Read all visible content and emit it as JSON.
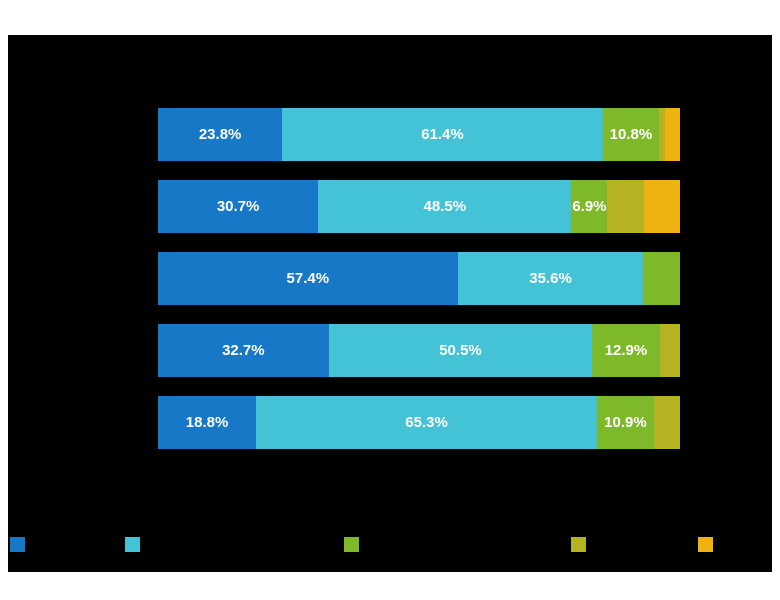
{
  "page": {
    "background_color": "#ffffff",
    "panel_color": "#000000"
  },
  "chart_data": {
    "type": "bar",
    "variant": "horizontal-stacked",
    "background": "#000000",
    "label_color": "#ffffff",
    "xlim": [
      0,
      100
    ],
    "categories": [
      "",
      "",
      "",
      "",
      ""
    ],
    "series_colors": [
      "#1878c8",
      "#45c3d6",
      "#7db928",
      "#b5b321",
      "#eeb211"
    ],
    "bars": [
      {
        "segments": [
          {
            "value": 23.8,
            "label": "23.8%"
          },
          {
            "value": 61.4,
            "label": "61.4%"
          },
          {
            "value": 10.8,
            "label": "10.8%"
          },
          {
            "value": 1.2,
            "label": ""
          },
          {
            "value": 2.8,
            "label": ""
          }
        ]
      },
      {
        "segments": [
          {
            "value": 30.7,
            "label": "30.7%"
          },
          {
            "value": 48.5,
            "label": "48.5%"
          },
          {
            "value": 6.9,
            "label": "6.9%"
          },
          {
            "value": 7.0,
            "label": ""
          },
          {
            "value": 6.9,
            "label": ""
          }
        ]
      },
      {
        "segments": [
          {
            "value": 57.4,
            "label": "57.4%"
          },
          {
            "value": 35.6,
            "label": "35.6%"
          },
          {
            "value": 7.0,
            "label": ""
          },
          {
            "value": 0,
            "label": ""
          },
          {
            "value": 0,
            "label": ""
          }
        ]
      },
      {
        "segments": [
          {
            "value": 32.7,
            "label": "32.7%"
          },
          {
            "value": 50.5,
            "label": "50.5%"
          },
          {
            "value": 12.9,
            "label": "12.9%"
          },
          {
            "value": 3.9,
            "label": ""
          },
          {
            "value": 0,
            "label": ""
          }
        ]
      },
      {
        "segments": [
          {
            "value": 18.8,
            "label": "18.8%"
          },
          {
            "value": 65.3,
            "label": "65.3%"
          },
          {
            "value": 10.9,
            "label": "10.9%"
          },
          {
            "value": 5.0,
            "label": ""
          },
          {
            "value": 0,
            "label": ""
          }
        ]
      }
    ],
    "legend": {
      "position": "bottom",
      "labels": [
        "",
        "",
        "",
        "",
        ""
      ]
    }
  }
}
